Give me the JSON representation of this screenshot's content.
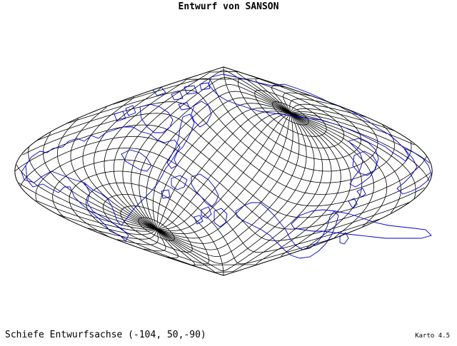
{
  "title": "Entwurf von SANSON",
  "caption": "Schiefe Entwurfsachse (-104, 50,-90)",
  "version": "Karto 4.5",
  "colors": {
    "graticule": "#000000",
    "coastline": "#0000cc",
    "background": "#ffffff"
  },
  "map": {
    "projection": "Sanson (sinusoidal)",
    "oblique_axis": [
      -104,
      50,
      -90
    ],
    "graticule_interval_deg": 10
  }
}
